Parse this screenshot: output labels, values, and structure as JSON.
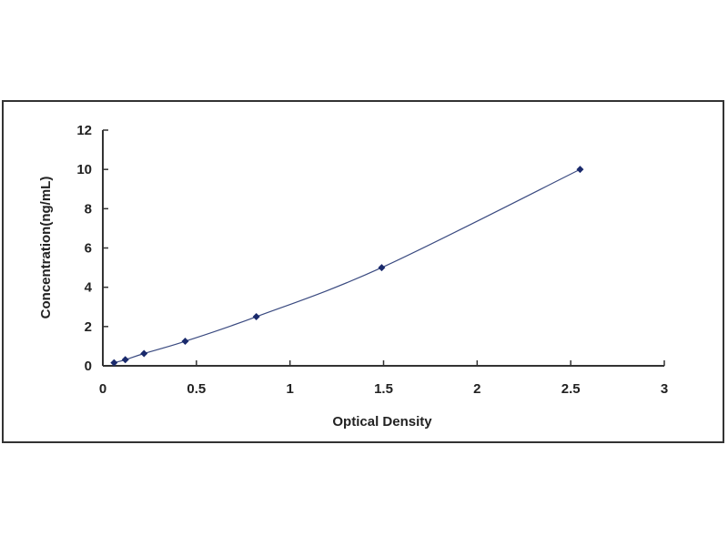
{
  "chart_data": {
    "type": "scatter",
    "title": "",
    "xlabel": "Optical Density",
    "ylabel": "Concentration(ng/mL)",
    "xlim": [
      0,
      3
    ],
    "ylim": [
      0,
      12
    ],
    "xticks": [
      "0",
      "0.5",
      "1",
      "1.5",
      "2",
      "2.5",
      "3"
    ],
    "yticks": [
      "0",
      "2",
      "4",
      "6",
      "8",
      "10",
      "12"
    ],
    "grid": false,
    "legend": "none",
    "trendline": "smooth curve",
    "series": [
      {
        "x": [
          0.06,
          0.12,
          0.22,
          0.44,
          0.82,
          1.49,
          2.55
        ],
        "y": [
          0.156,
          0.312,
          0.625,
          1.25,
          2.5,
          5,
          10
        ],
        "color": "#1a2a6c"
      }
    ]
  }
}
